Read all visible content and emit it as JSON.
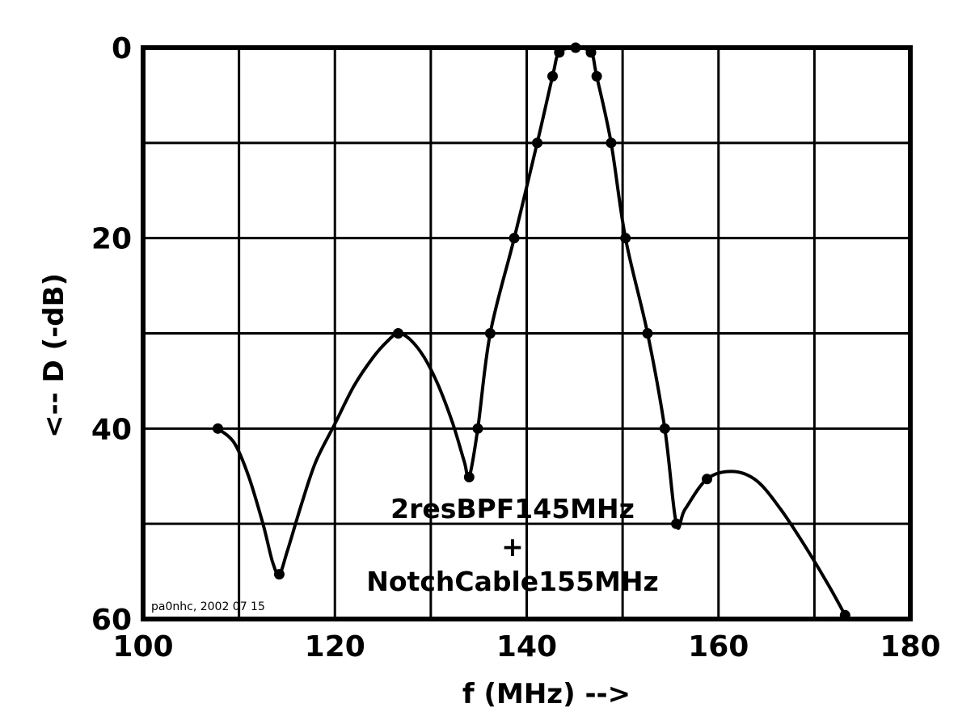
{
  "chart_data": {
    "type": "line",
    "title": "",
    "xlabel": "f (MHz) -->",
    "ylabel": "<-- D (-dB)",
    "xlim": [
      100,
      180
    ],
    "ylim": [
      0,
      60
    ],
    "y_inverted": true,
    "grid": true,
    "x_ticks": [
      100,
      120,
      140,
      160,
      180
    ],
    "x_tick_labels": [
      "100",
      "120",
      "140",
      "160",
      "180"
    ],
    "y_ticks": [
      0,
      20,
      40,
      60
    ],
    "y_tick_labels": [
      "0",
      "20",
      "40",
      "60"
    ],
    "grid_x": [
      100,
      110,
      120,
      130,
      140,
      150,
      160,
      170,
      180
    ],
    "grid_y": [
      0,
      10,
      20,
      30,
      40,
      50,
      60
    ],
    "series": [
      {
        "markers": [
          [
            107.8,
            40
          ],
          [
            114.2,
            55.3
          ],
          [
            126.6,
            30
          ],
          [
            134,
            45.1
          ],
          [
            134.9,
            40
          ],
          [
            136.2,
            30
          ],
          [
            138.7,
            20
          ],
          [
            141.1,
            10
          ],
          [
            142.7,
            3
          ],
          [
            143.4,
            0.5
          ],
          [
            145.1,
            0
          ],
          [
            146.7,
            0.5
          ],
          [
            147.3,
            3
          ],
          [
            148.8,
            10
          ],
          [
            150.3,
            20
          ],
          [
            152.6,
            30
          ],
          [
            154.4,
            40
          ],
          [
            155.6,
            50
          ],
          [
            158.8,
            45.3
          ],
          [
            173.2,
            59.6
          ]
        ],
        "curve": [
          [
            107.8,
            40
          ],
          [
            109.5,
            41.5
          ],
          [
            111,
            45
          ],
          [
            112.5,
            50
          ],
          [
            113.5,
            54
          ],
          [
            114.2,
            55.3
          ],
          [
            115,
            53
          ],
          [
            116.5,
            48
          ],
          [
            118,
            43.5
          ],
          [
            120,
            39.5
          ],
          [
            122,
            35.5
          ],
          [
            124,
            32.5
          ],
          [
            125.5,
            30.8
          ],
          [
            126.6,
            30
          ],
          [
            127.8,
            30.6
          ],
          [
            129.3,
            32.5
          ],
          [
            130.8,
            35.5
          ],
          [
            132.3,
            39.5
          ],
          [
            133.5,
            43.5
          ],
          [
            134,
            45.1
          ],
          [
            134.9,
            40
          ],
          [
            136.2,
            30
          ],
          [
            138.7,
            20
          ],
          [
            141.1,
            10
          ],
          [
            142.7,
            3
          ],
          [
            143.4,
            0.5
          ],
          [
            145.1,
            0
          ],
          [
            146.7,
            0.5
          ],
          [
            147.3,
            3
          ],
          [
            148.8,
            10
          ],
          [
            150.3,
            20
          ],
          [
            152.6,
            30
          ],
          [
            154.4,
            40
          ],
          [
            155.6,
            50
          ],
          [
            156.5,
            48.5
          ],
          [
            158.8,
            45.3
          ],
          [
            161.5,
            44.5
          ],
          [
            164,
            45.5
          ],
          [
            166.5,
            48.5
          ],
          [
            169,
            52.3
          ],
          [
            171.5,
            56.5
          ],
          [
            173.2,
            59.6
          ]
        ]
      }
    ],
    "annotations": [
      "2resBPF145MHz",
      "+",
      "NotchCable155MHz"
    ],
    "credit": "pa0nhc, 2002 07 15"
  }
}
